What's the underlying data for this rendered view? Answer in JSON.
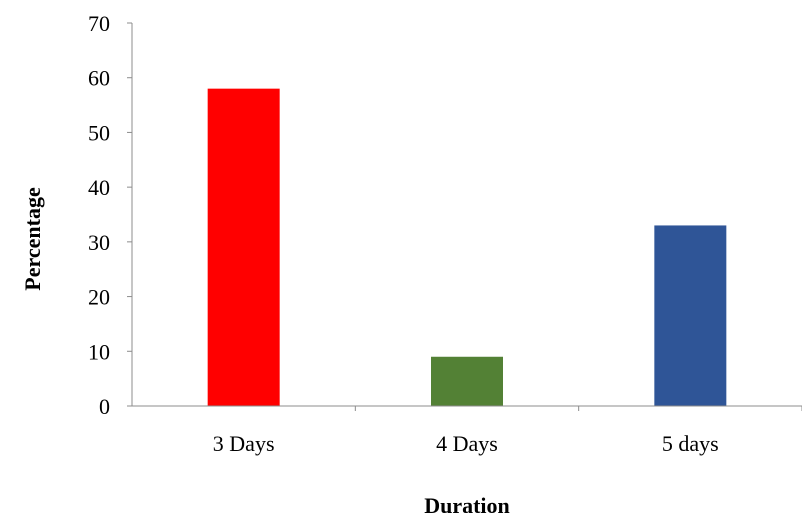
{
  "chart_data": {
    "type": "bar",
    "categories": [
      "3 Days",
      "4 Days",
      "5 days"
    ],
    "values": [
      58,
      9,
      33
    ],
    "bar_colors": [
      "#ff0000",
      "#538135",
      "#2f5597"
    ],
    "xlabel": "Duration",
    "ylabel": "Percentage",
    "ylim": [
      0,
      70
    ],
    "yticks": [
      "0",
      "10",
      "20",
      "30",
      "40",
      "50",
      "60",
      "70"
    ],
    "grid": false,
    "legend": "none"
  }
}
